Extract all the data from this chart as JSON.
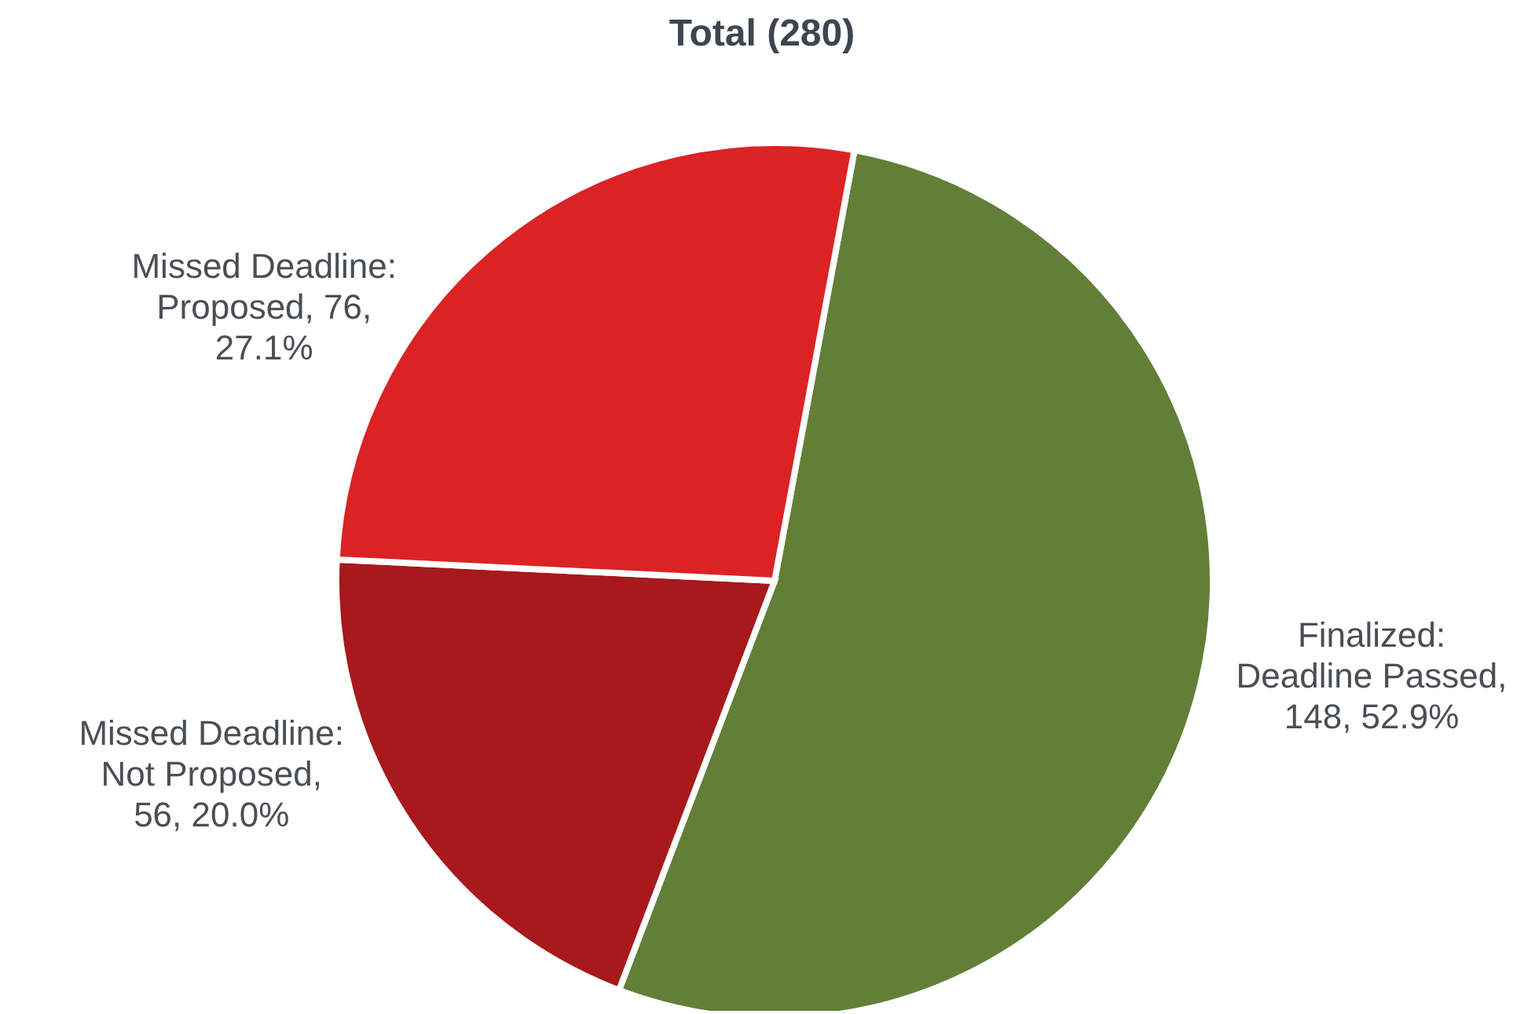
{
  "chart_data": {
    "type": "pie",
    "title": "Total (280)",
    "categories": [
      "Finalized: Deadline Passed",
      "Missed Deadline: Not Proposed",
      "Missed Deadline: Proposed"
    ],
    "values": [
      148,
      56,
      76
    ],
    "colors": [
      "#627f38",
      "#a8191b",
      "#db2325"
    ],
    "value_labels": [
      ", 148, 52.9%",
      ", 56, 20.0%",
      ", 76, 27.1%"
    ]
  }
}
